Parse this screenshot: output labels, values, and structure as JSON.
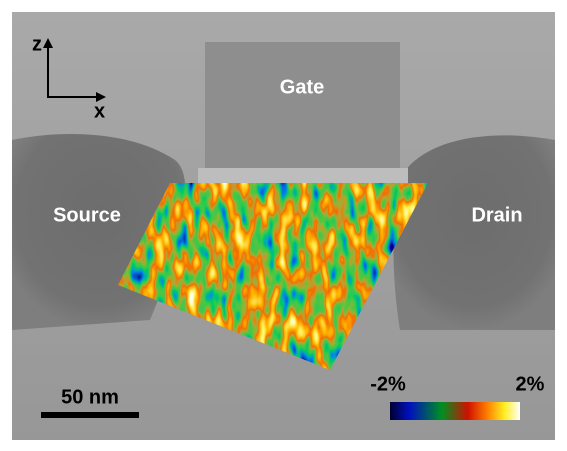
{
  "axes": {
    "vertical": "z",
    "horizontal": "x"
  },
  "regions": {
    "gate": "Gate",
    "source": "Source",
    "drain": "Drain"
  },
  "scale_bar": {
    "label": "50 nm"
  },
  "colorbar": {
    "min_label": "-2%",
    "max_label": "2%"
  }
}
